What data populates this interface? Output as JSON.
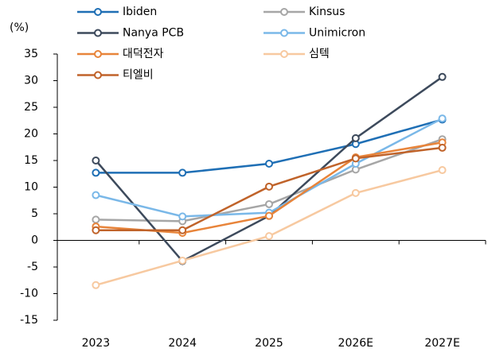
{
  "chart_data": {
    "type": "line",
    "y_label": "(%)",
    "categories": [
      "2023",
      "2024",
      "2025",
      "2026E",
      "2027E"
    ],
    "series": [
      {
        "name": "Ibiden",
        "color": "#1f6fb5",
        "values": [
          12.7,
          12.7,
          14.4,
          18.1,
          22.7
        ]
      },
      {
        "name": "Kinsus",
        "color": "#a6a6a6",
        "values": [
          3.9,
          3.6,
          6.8,
          13.3,
          19.0
        ]
      },
      {
        "name": "Nanya PCB",
        "color": "#3d4a5c",
        "values": [
          15.0,
          -3.9,
          4.6,
          19.2,
          30.7
        ]
      },
      {
        "name": "Unimicron",
        "color": "#7ab8e8",
        "values": [
          8.5,
          4.5,
          5.2,
          14.4,
          22.9
        ]
      },
      {
        "name": "대덕전자",
        "color": "#e8843a",
        "values": [
          2.6,
          1.4,
          4.6,
          15.6,
          18.4
        ]
      },
      {
        "name": "심텍",
        "color": "#f7c9a0",
        "values": [
          -8.4,
          -3.8,
          0.8,
          8.9,
          13.2
        ]
      },
      {
        "name": "티엘비",
        "color": "#c0632a",
        "values": [
          1.9,
          1.9,
          10.1,
          15.4,
          17.4
        ]
      }
    ],
    "ylim": [
      -15,
      35
    ],
    "yticks": [
      -15,
      -10,
      -5,
      0,
      5,
      10,
      15,
      20,
      25,
      30,
      35
    ],
    "grid": false
  }
}
